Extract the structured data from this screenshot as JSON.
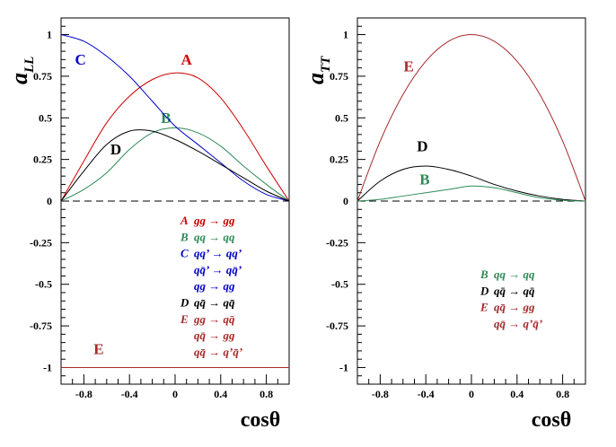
{
  "chart_data": [
    {
      "id": "left",
      "type": "line",
      "title": "",
      "ylabel": {
        "main": "a",
        "sub": "LL"
      },
      "xlabel": "cosθ",
      "xlim": [
        -1,
        1
      ],
      "ylim": [
        -1.1,
        1.1
      ],
      "x_ticks": [
        -0.8,
        -0.4,
        0,
        0.4,
        0.8
      ],
      "x_tick_labels": [
        "-0.8",
        "-0.4",
        "0",
        "0.4",
        "0.8"
      ],
      "y_ticks": [
        -1,
        -0.75,
        -0.5,
        -0.25,
        0,
        0.25,
        0.5,
        0.75,
        1
      ],
      "y_tick_labels": [
        "-1",
        "-0.75",
        "-0.5",
        "-0.25",
        "0",
        "0.25",
        "0.5",
        "0.75",
        "1"
      ],
      "zero_line": "dashed",
      "grid": false,
      "x": [
        -1,
        -0.8,
        -0.6,
        -0.4,
        -0.2,
        0,
        0.2,
        0.4,
        0.6,
        0.8,
        1
      ],
      "series": [
        {
          "name": "A",
          "color": "#cc0000",
          "label_at": [
            0.1,
            0.82
          ],
          "values": [
            0,
            0.24,
            0.47,
            0.63,
            0.73,
            0.77,
            0.74,
            0.62,
            0.43,
            0.21,
            0
          ]
        },
        {
          "name": "B",
          "color": "#2e8b57",
          "label_at": [
            -0.08,
            0.47
          ],
          "values": [
            0,
            0.07,
            0.17,
            0.31,
            0.41,
            0.44,
            0.41,
            0.33,
            0.21,
            0.1,
            0
          ]
        },
        {
          "name": "C",
          "color": "#0000cc",
          "label_at": [
            -0.83,
            0.82
          ],
          "values": [
            1,
            0.96,
            0.87,
            0.75,
            0.6,
            0.45,
            0.34,
            0.23,
            0.12,
            0.04,
            0
          ]
        },
        {
          "name": "D",
          "color": "#000000",
          "label_at": [
            -0.52,
            0.28
          ],
          "values": [
            0,
            0.18,
            0.34,
            0.42,
            0.42,
            0.37,
            0.3,
            0.22,
            0.14,
            0.06,
            0
          ]
        },
        {
          "name": "E",
          "color": "#a52a2a",
          "label_at": [
            -0.67,
            -0.92
          ],
          "values": [
            -1,
            -1,
            -1,
            -1,
            -1,
            -1,
            -1,
            -1,
            -1,
            -1,
            -1
          ]
        }
      ],
      "legend": [
        {
          "letter": "A",
          "text": "gg → gg",
          "color": "#cc0000"
        },
        {
          "letter": "B",
          "text": "qq → qq",
          "color": "#2e8b57"
        },
        {
          "letter": "C",
          "text": "qq’ → qq’",
          "color": "#0000cc"
        },
        {
          "letter": "",
          "text": "qq̄’ → qq̄’",
          "color": "#0000cc"
        },
        {
          "letter": "",
          "text": "qg → qg",
          "color": "#0000cc"
        },
        {
          "letter": "D",
          "text": "qq̄ → qq̄",
          "color": "#000000"
        },
        {
          "letter": "E",
          "text": "gg → qq̄",
          "color": "#a52a2a"
        },
        {
          "letter": "",
          "text": "qq̄ → gg",
          "color": "#a52a2a"
        },
        {
          "letter": "",
          "text": "qq̄ → q’q̄’",
          "color": "#a52a2a"
        }
      ]
    },
    {
      "id": "right",
      "type": "line",
      "title": "",
      "ylabel": {
        "main": "a",
        "sub": "TT"
      },
      "xlabel": "cosθ",
      "xlim": [
        -1,
        1
      ],
      "ylim": [
        -1.1,
        1.1
      ],
      "x_ticks": [
        -0.8,
        -0.4,
        0,
        0.4,
        0.8
      ],
      "x_tick_labels": [
        "-0.8",
        "-0.4",
        "0",
        "0.4",
        "0.8"
      ],
      "y_ticks": [
        -1,
        -0.75,
        -0.5,
        -0.25,
        0,
        0.25,
        0.5,
        0.75,
        1
      ],
      "y_tick_labels": [
        "-1",
        "-0.75",
        "-0.5",
        "-0.25",
        "0",
        "0.25",
        "0.5",
        "0.75",
        "1"
      ],
      "zero_line": "dashed",
      "grid": false,
      "x": [
        -1,
        -0.8,
        -0.6,
        -0.4,
        -0.2,
        0,
        0.2,
        0.4,
        0.6,
        0.8,
        1
      ],
      "series": [
        {
          "name": "E",
          "color": "#a52a2a",
          "label_at": [
            -0.55,
            0.78
          ],
          "values": [
            0,
            0.36,
            0.64,
            0.84,
            0.96,
            1,
            0.96,
            0.84,
            0.64,
            0.36,
            0
          ]
        },
        {
          "name": "D",
          "color": "#000000",
          "label_at": [
            -0.43,
            0.3
          ],
          "values": [
            0,
            0.12,
            0.19,
            0.21,
            0.19,
            0.15,
            0.1,
            0.06,
            0.03,
            0.01,
            0
          ]
        },
        {
          "name": "B",
          "color": "#2e8b57",
          "label_at": [
            -0.41,
            0.1
          ],
          "values": [
            0,
            0.01,
            0.03,
            0.05,
            0.07,
            0.09,
            0.08,
            0.05,
            0.02,
            0.005,
            0
          ]
        }
      ],
      "legend": [
        {
          "letter": "B",
          "text": "qq → qq",
          "color": "#2e8b57"
        },
        {
          "letter": "D",
          "text": "qq̄ → qq̄",
          "color": "#000000"
        },
        {
          "letter": "E",
          "text": "qq̄ → gg",
          "color": "#a52a2a"
        },
        {
          "letter": "",
          "text": "qq̄ → q’q̄’",
          "color": "#a52a2a"
        }
      ]
    }
  ]
}
